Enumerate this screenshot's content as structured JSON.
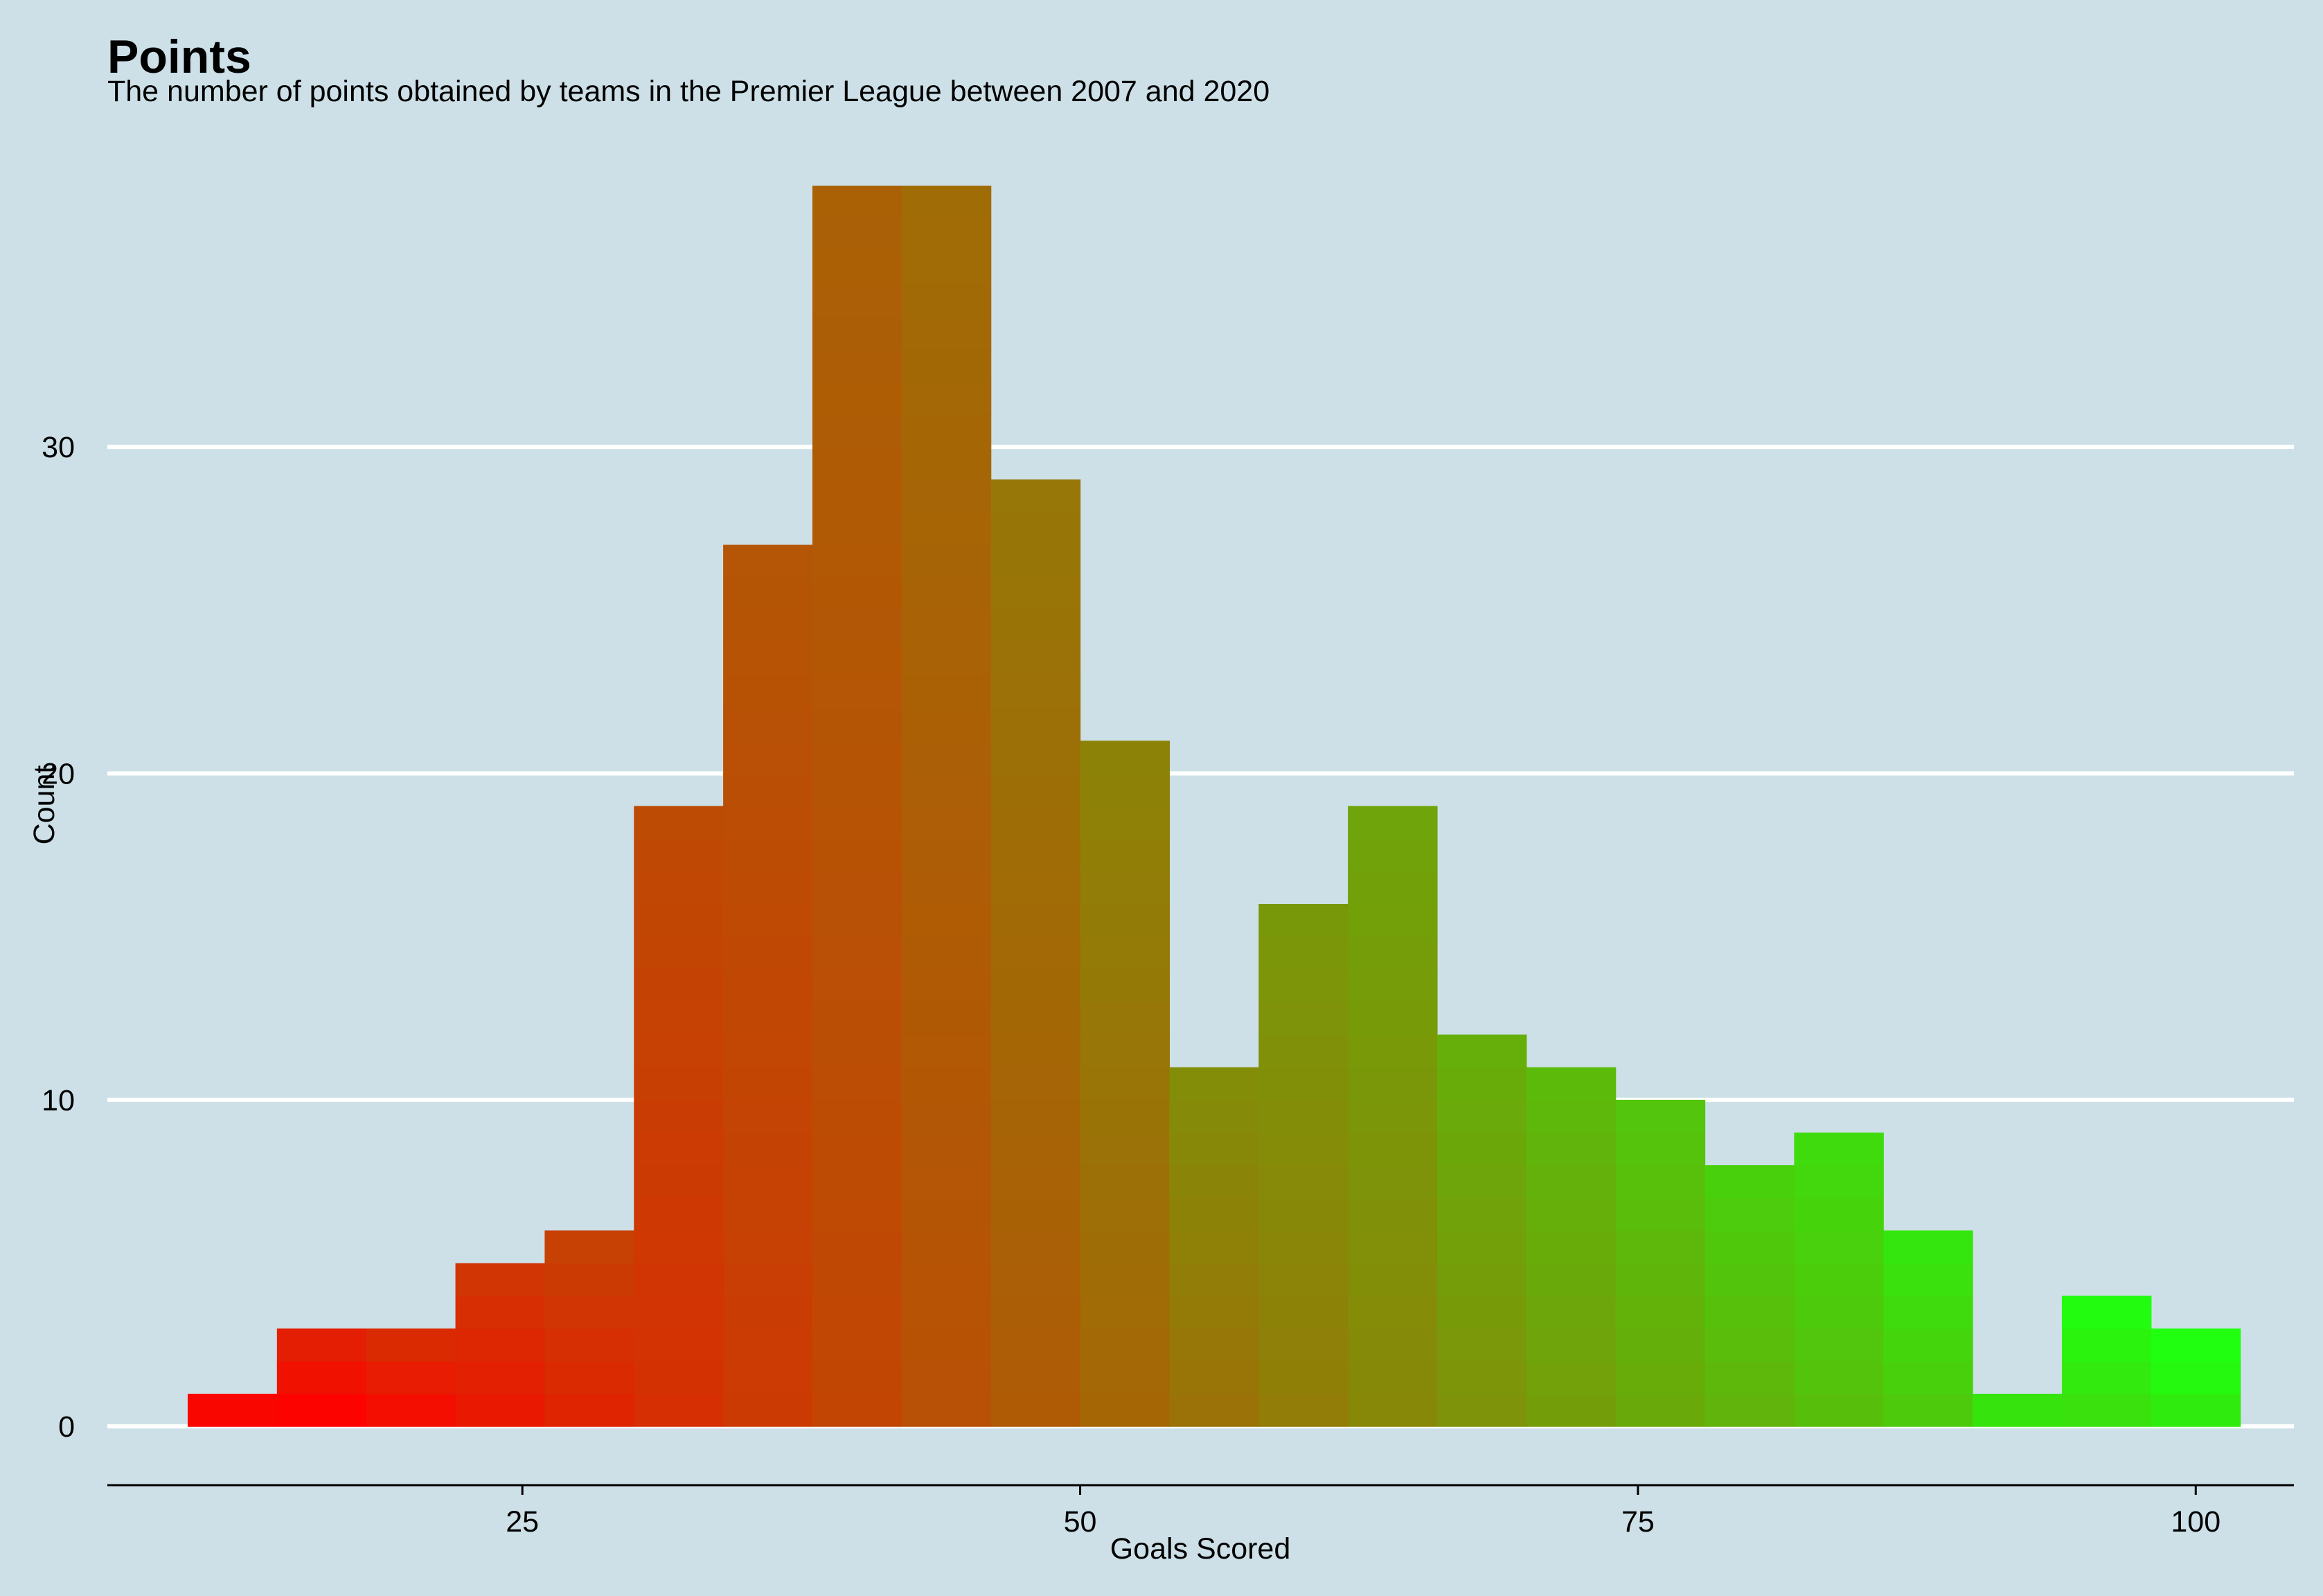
{
  "chart_data": {
    "type": "bar",
    "title": "Points",
    "subtitle": "The number of points obtained by teams in the Premier League between 2007 and 2020",
    "xlabel": "Goals Scored",
    "ylabel": "Count",
    "xlim": [
      6.4,
      104.4
    ],
    "ylim": [
      -1.8,
      38.0
    ],
    "x_ticks": [
      "25",
      "50",
      "75",
      "100"
    ],
    "x_tick_values": [
      25,
      50,
      75,
      100
    ],
    "y_ticks": [
      "0",
      "10",
      "20",
      "30"
    ],
    "y_tick_values": [
      0,
      10,
      20,
      30
    ],
    "bin_width": 4,
    "bins": [
      {
        "x0": 10,
        "x1": 14,
        "count": 1
      },
      {
        "x0": 14,
        "x1": 18,
        "count": 3
      },
      {
        "x0": 18,
        "x1": 22,
        "count": 3
      },
      {
        "x0": 22,
        "x1": 26,
        "count": 5
      },
      {
        "x0": 26,
        "x1": 30,
        "count": 6
      },
      {
        "x0": 30,
        "x1": 34,
        "count": 19
      },
      {
        "x0": 34,
        "x1": 38,
        "count": 27
      },
      {
        "x0": 38,
        "x1": 42,
        "count": 38
      },
      {
        "x0": 42,
        "x1": 46,
        "count": 38
      },
      {
        "x0": 46,
        "x1": 50,
        "count": 29
      },
      {
        "x0": 50,
        "x1": 54,
        "count": 21
      },
      {
        "x0": 54,
        "x1": 58,
        "count": 11
      },
      {
        "x0": 58,
        "x1": 62,
        "count": 16
      },
      {
        "x0": 62,
        "x1": 66,
        "count": 19
      },
      {
        "x0": 66,
        "x1": 70,
        "count": 12
      },
      {
        "x0": 70,
        "x1": 74,
        "count": 11
      },
      {
        "x0": 74,
        "x1": 78,
        "count": 10
      },
      {
        "x0": 78,
        "x1": 82,
        "count": 8
      },
      {
        "x0": 82,
        "x1": 86,
        "count": 9
      },
      {
        "x0": 86,
        "x1": 90,
        "count": 6
      },
      {
        "x0": 90,
        "x1": 94,
        "count": 1
      },
      {
        "x0": 94,
        "x1": 98,
        "count": 4
      },
      {
        "x0": 98,
        "x1": 102,
        "count": 3
      }
    ],
    "fill_gradient": {
      "low": "#ff0000",
      "high": "#1fff0f",
      "description": "stacked segments coloured by points total, red (low) to green (high)"
    },
    "grid": "horizontal major lines only",
    "legend": "none"
  },
  "colors": {
    "background": "#cde0e7",
    "gridline": "#ffffff",
    "axis_line": "#000000",
    "text": "#000000"
  }
}
